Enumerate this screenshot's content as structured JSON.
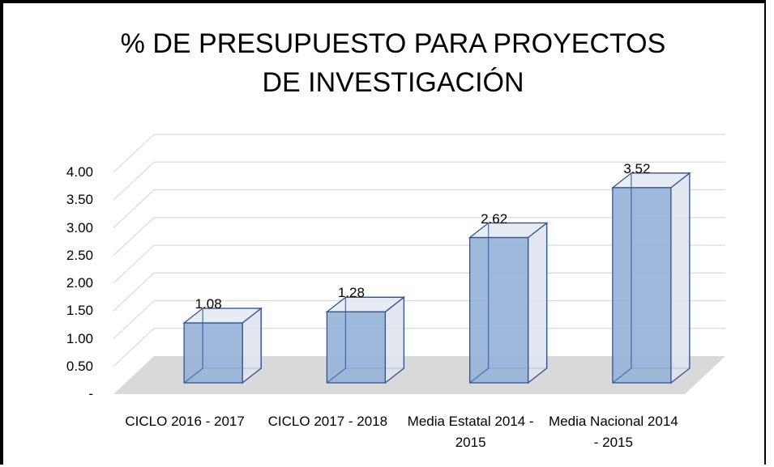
{
  "chart_data": {
    "type": "bar3d",
    "title": "% DE PRESUPUESTO PARA PROYECTOS DE INVESTIGACIÓN",
    "categories": [
      "CICLO 2016 - 2017",
      "CICLO 2017 - 2018",
      "Media Estatal 2014 - 2015",
      "Media Nacional 2014 - 2015"
    ],
    "values": [
      1.08,
      1.28,
      2.62,
      3.52
    ],
    "color": "#95b3d7",
    "ylim": [
      0,
      4
    ],
    "yticks": [
      {
        "value": 0,
        "label": "-"
      },
      {
        "value": 0.5,
        "label": "0.50"
      },
      {
        "value": 1,
        "label": "1.00"
      },
      {
        "value": 1.5,
        "label": "1.50"
      },
      {
        "value": 2,
        "label": "2.00"
      },
      {
        "value": 2.5,
        "label": "2.50"
      },
      {
        "value": 3,
        "label": "3.00"
      },
      {
        "value": 3.5,
        "label": "3.50"
      },
      {
        "value": 4,
        "label": "4.00"
      }
    ],
    "grid": true
  }
}
